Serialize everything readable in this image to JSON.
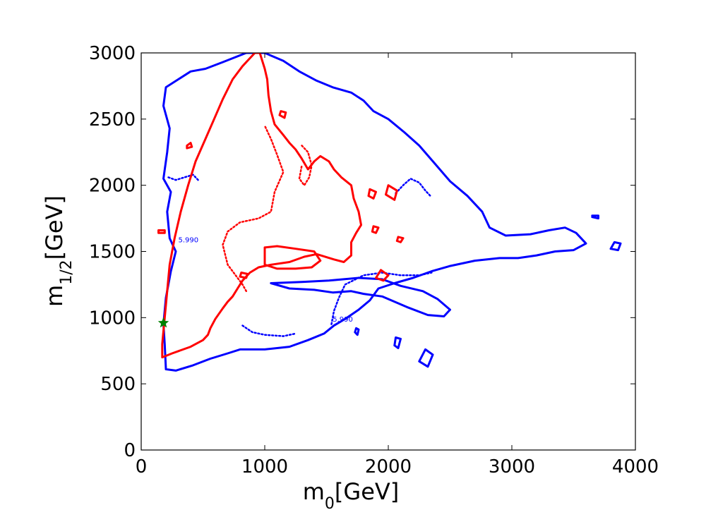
{
  "chart_data": {
    "type": "contour",
    "xlabel": "m0[GeV]",
    "ylabel": "m1/2[GeV]",
    "xlim": [
      0,
      4000
    ],
    "ylim": [
      0,
      3000
    ],
    "xticks": [
      0,
      1000,
      2000,
      3000,
      4000
    ],
    "yticks": [
      0,
      500,
      1000,
      1500,
      2000,
      2500,
      3000
    ],
    "xtick_labels": [
      "0",
      "1000",
      "2000",
      "3000",
      "4000"
    ],
    "ytick_labels": [
      "0",
      "500",
      "1000",
      "1500",
      "2000",
      "2500",
      "3000"
    ],
    "grid": false,
    "colors": {
      "blue": "#0000ff",
      "red": "#ff0000",
      "star": "#008000"
    },
    "contour_labels": [
      {
        "text": "5.990",
        "x": 1550,
        "y": 970,
        "color": "#0000ff"
      },
      {
        "text": "5.990",
        "x": 300,
        "y": 1570,
        "color": "#0000ff"
      }
    ],
    "best_fit_point": {
      "x": 180,
      "y": 960
    },
    "series": [
      {
        "color": "#0000ff",
        "style": "solid",
        "width": 3,
        "points": [
          [
            200,
            610
          ],
          [
            280,
            600
          ],
          [
            420,
            640
          ],
          [
            560,
            690
          ],
          [
            700,
            730
          ],
          [
            800,
            760
          ],
          [
            1000,
            760
          ],
          [
            1200,
            780
          ],
          [
            1350,
            830
          ],
          [
            1480,
            880
          ],
          [
            1560,
            940
          ],
          [
            1650,
            990
          ],
          [
            1760,
            1060
          ],
          [
            1850,
            1130
          ],
          [
            1920,
            1220
          ],
          [
            2050,
            1260
          ],
          [
            2200,
            1300
          ],
          [
            2350,
            1350
          ],
          [
            2500,
            1390
          ],
          [
            2700,
            1430
          ],
          [
            2900,
            1450
          ],
          [
            3050,
            1450
          ],
          [
            3200,
            1470
          ],
          [
            3350,
            1500
          ],
          [
            3500,
            1510
          ],
          [
            3600,
            1560
          ],
          [
            3520,
            1640
          ],
          [
            3430,
            1680
          ],
          [
            3300,
            1660
          ],
          [
            3150,
            1630
          ],
          [
            2950,
            1620
          ],
          [
            2820,
            1680
          ],
          [
            2760,
            1800
          ],
          [
            2640,
            1920
          ],
          [
            2500,
            2030
          ],
          [
            2380,
            2160
          ],
          [
            2250,
            2300
          ],
          [
            2130,
            2400
          ],
          [
            2000,
            2500
          ],
          [
            1880,
            2560
          ],
          [
            1800,
            2640
          ],
          [
            1700,
            2700
          ],
          [
            1550,
            2740
          ],
          [
            1420,
            2790
          ],
          [
            1280,
            2860
          ],
          [
            1150,
            2940
          ],
          [
            1000,
            3000
          ],
          [
            850,
            3000
          ],
          [
            660,
            2930
          ],
          [
            520,
            2880
          ],
          [
            400,
            2860
          ],
          [
            300,
            2800
          ],
          [
            200,
            2740
          ],
          [
            180,
            2600
          ],
          [
            230,
            2430
          ],
          [
            210,
            2250
          ],
          [
            180,
            2050
          ],
          [
            240,
            1950
          ],
          [
            210,
            1800
          ],
          [
            230,
            1600
          ],
          [
            280,
            1500
          ],
          [
            240,
            1350
          ],
          [
            200,
            1150
          ],
          [
            180,
            950
          ],
          [
            190,
            800
          ],
          [
            200,
            610
          ]
        ]
      },
      {
        "color": "#0000ff",
        "style": "solid",
        "width": 3,
        "points": [
          [
            1050,
            1260
          ],
          [
            1200,
            1220
          ],
          [
            1400,
            1210
          ],
          [
            1550,
            1190
          ],
          [
            1700,
            1200
          ],
          [
            1800,
            1180
          ],
          [
            1950,
            1160
          ],
          [
            2150,
            1080
          ],
          [
            2320,
            1020
          ],
          [
            2450,
            1010
          ],
          [
            2500,
            1060
          ],
          [
            2400,
            1140
          ],
          [
            2280,
            1200
          ],
          [
            2100,
            1240
          ],
          [
            1950,
            1290
          ],
          [
            1760,
            1300
          ],
          [
            1520,
            1280
          ],
          [
            1300,
            1270
          ],
          [
            1050,
            1260
          ]
        ]
      },
      {
        "color": "#0000ff",
        "style": "solid",
        "width": 3,
        "points": [
          [
            2250,
            670
          ],
          [
            2320,
            630
          ],
          [
            2360,
            720
          ],
          [
            2300,
            760
          ],
          [
            2250,
            670
          ]
        ]
      },
      {
        "color": "#0000ff",
        "style": "solid",
        "width": 3,
        "points": [
          [
            2050,
            790
          ],
          [
            2080,
            770
          ],
          [
            2100,
            840
          ],
          [
            2060,
            850
          ],
          [
            2050,
            790
          ]
        ]
      },
      {
        "color": "#0000ff",
        "style": "solid",
        "width": 3,
        "points": [
          [
            3800,
            1520
          ],
          [
            3860,
            1510
          ],
          [
            3880,
            1560
          ],
          [
            3830,
            1570
          ],
          [
            3800,
            1520
          ]
        ]
      },
      {
        "color": "#0000ff",
        "style": "solid",
        "width": 3,
        "points": [
          [
            3650,
            1760
          ],
          [
            3700,
            1750
          ],
          [
            3700,
            1770
          ],
          [
            3650,
            1770
          ]
        ]
      },
      {
        "color": "#0000ff",
        "style": "solid",
        "width": 3,
        "points": [
          [
            1730,
            890
          ],
          [
            1750,
            870
          ],
          [
            1760,
            910
          ],
          [
            1740,
            920
          ],
          [
            1730,
            890
          ]
        ]
      },
      {
        "color": "#0000ff",
        "style": "dotted",
        "width": 2.5,
        "points": [
          [
            1540,
            950
          ],
          [
            1560,
            1050
          ],
          [
            1600,
            1150
          ],
          [
            1650,
            1250
          ],
          [
            1800,
            1320
          ],
          [
            1950,
            1340
          ],
          [
            2100,
            1320
          ],
          [
            2250,
            1320
          ],
          [
            2350,
            1340
          ]
        ]
      },
      {
        "color": "#0000ff",
        "style": "dotted",
        "width": 2.5,
        "points": [
          [
            2060,
            1940
          ],
          [
            2120,
            2000
          ],
          [
            2180,
            2050
          ],
          [
            2250,
            2020
          ],
          [
            2300,
            1960
          ],
          [
            2340,
            1920
          ]
        ]
      },
      {
        "color": "#0000ff",
        "style": "dotted",
        "width": 2.5,
        "points": [
          [
            220,
            2060
          ],
          [
            280,
            2040
          ],
          [
            350,
            2060
          ],
          [
            420,
            2080
          ],
          [
            470,
            2030
          ]
        ]
      },
      {
        "color": "#0000ff",
        "style": "dotted",
        "width": 2.5,
        "points": [
          [
            820,
            940
          ],
          [
            900,
            890
          ],
          [
            1000,
            870
          ],
          [
            1150,
            860
          ],
          [
            1250,
            880
          ]
        ]
      },
      {
        "color": "#ff0000",
        "style": "solid",
        "width": 3,
        "points": [
          [
            170,
            700
          ],
          [
            250,
            730
          ],
          [
            400,
            780
          ],
          [
            500,
            830
          ],
          [
            540,
            870
          ],
          [
            560,
            920
          ],
          [
            600,
            990
          ],
          [
            660,
            1070
          ],
          [
            700,
            1120
          ],
          [
            740,
            1160
          ],
          [
            780,
            1220
          ],
          [
            820,
            1280
          ],
          [
            880,
            1340
          ],
          [
            950,
            1380
          ],
          [
            1050,
            1400
          ],
          [
            1200,
            1420
          ],
          [
            1320,
            1460
          ],
          [
            1420,
            1480
          ],
          [
            1560,
            1440
          ],
          [
            1640,
            1420
          ],
          [
            1700,
            1470
          ],
          [
            1700,
            1570
          ],
          [
            1740,
            1640
          ],
          [
            1780,
            1700
          ],
          [
            1760,
            1800
          ],
          [
            1720,
            1900
          ],
          [
            1700,
            2000
          ],
          [
            1620,
            2060
          ],
          [
            1560,
            2120
          ],
          [
            1520,
            2180
          ],
          [
            1450,
            2220
          ],
          [
            1400,
            2180
          ],
          [
            1350,
            2120
          ],
          [
            1300,
            2200
          ],
          [
            1250,
            2270
          ],
          [
            1200,
            2320
          ],
          [
            1150,
            2380
          ],
          [
            1080,
            2460
          ],
          [
            1050,
            2560
          ],
          [
            1030,
            2680
          ],
          [
            1020,
            2800
          ],
          [
            1000,
            2880
          ],
          [
            960,
            3000
          ],
          [
            920,
            3000
          ],
          [
            880,
            2960
          ],
          [
            820,
            2900
          ],
          [
            740,
            2800
          ],
          [
            660,
            2650
          ],
          [
            590,
            2500
          ],
          [
            520,
            2350
          ],
          [
            440,
            2180
          ],
          [
            380,
            2000
          ],
          [
            320,
            1800
          ],
          [
            270,
            1600
          ],
          [
            230,
            1400
          ],
          [
            210,
            1200
          ],
          [
            190,
            1000
          ],
          [
            170,
            800
          ],
          [
            170,
            700
          ]
        ]
      },
      {
        "color": "#ff0000",
        "style": "solid",
        "width": 3,
        "points": [
          [
            1000,
            1530
          ],
          [
            1100,
            1540
          ],
          [
            1250,
            1520
          ],
          [
            1400,
            1500
          ],
          [
            1450,
            1430
          ],
          [
            1380,
            1380
          ],
          [
            1250,
            1370
          ],
          [
            1100,
            1370
          ],
          [
            1000,
            1400
          ],
          [
            1000,
            1530
          ]
        ]
      },
      {
        "color": "#ff0000",
        "style": "solid",
        "width": 3,
        "points": [
          [
            1900,
            1300
          ],
          [
            1960,
            1280
          ],
          [
            2000,
            1320
          ],
          [
            1940,
            1360
          ],
          [
            1900,
            1300
          ]
        ]
      },
      {
        "color": "#ff0000",
        "style": "solid",
        "width": 3,
        "points": [
          [
            1980,
            1930
          ],
          [
            2050,
            1890
          ],
          [
            2070,
            1960
          ],
          [
            2000,
            2000
          ],
          [
            1980,
            1930
          ]
        ]
      },
      {
        "color": "#ff0000",
        "style": "solid",
        "width": 3,
        "points": [
          [
            1840,
            1920
          ],
          [
            1880,
            1900
          ],
          [
            1900,
            1950
          ],
          [
            1850,
            1970
          ],
          [
            1840,
            1920
          ]
        ]
      },
      {
        "color": "#ff0000",
        "style": "solid",
        "width": 3,
        "points": [
          [
            2070,
            1580
          ],
          [
            2100,
            1570
          ],
          [
            2120,
            1600
          ],
          [
            2080,
            1610
          ],
          [
            2070,
            1580
          ]
        ]
      },
      {
        "color": "#ff0000",
        "style": "solid",
        "width": 3,
        "points": [
          [
            1870,
            1650
          ],
          [
            1900,
            1640
          ],
          [
            1920,
            1680
          ],
          [
            1880,
            1690
          ],
          [
            1870,
            1650
          ]
        ]
      },
      {
        "color": "#ff0000",
        "style": "solid",
        "width": 3,
        "points": [
          [
            1120,
            2530
          ],
          [
            1160,
            2510
          ],
          [
            1170,
            2550
          ],
          [
            1130,
            2560
          ],
          [
            1120,
            2530
          ]
        ]
      },
      {
        "color": "#ff0000",
        "style": "solid",
        "width": 3,
        "points": [
          [
            140,
            1640
          ],
          [
            190,
            1640
          ],
          [
            190,
            1660
          ],
          [
            140,
            1660
          ],
          [
            140,
            1640
          ]
        ]
      },
      {
        "color": "#ff0000",
        "style": "solid",
        "width": 3,
        "points": [
          [
            370,
            2280
          ],
          [
            410,
            2290
          ],
          [
            400,
            2320
          ],
          [
            370,
            2300
          ],
          [
            370,
            2280
          ]
        ]
      },
      {
        "color": "#ff0000",
        "style": "solid",
        "width": 3,
        "points": [
          [
            800,
            1310
          ],
          [
            850,
            1300
          ],
          [
            860,
            1330
          ],
          [
            810,
            1340
          ],
          [
            800,
            1310
          ]
        ]
      },
      {
        "color": "#ff0000",
        "style": "dotted",
        "width": 2.5,
        "points": [
          [
            850,
            1200
          ],
          [
            820,
            1250
          ],
          [
            780,
            1300
          ],
          [
            700,
            1400
          ],
          [
            660,
            1550
          ],
          [
            700,
            1650
          ],
          [
            800,
            1720
          ],
          [
            950,
            1750
          ],
          [
            1050,
            1800
          ],
          [
            1080,
            1950
          ],
          [
            1150,
            2100
          ],
          [
            1100,
            2230
          ],
          [
            1050,
            2350
          ],
          [
            1000,
            2450
          ]
        ]
      },
      {
        "color": "#ff0000",
        "style": "dotted",
        "width": 2.5,
        "points": [
          [
            1300,
            2300
          ],
          [
            1350,
            2250
          ],
          [
            1380,
            2150
          ],
          [
            1360,
            2060
          ],
          [
            1320,
            2000
          ],
          [
            1280,
            2050
          ],
          [
            1300,
            2150
          ]
        ]
      }
    ]
  }
}
